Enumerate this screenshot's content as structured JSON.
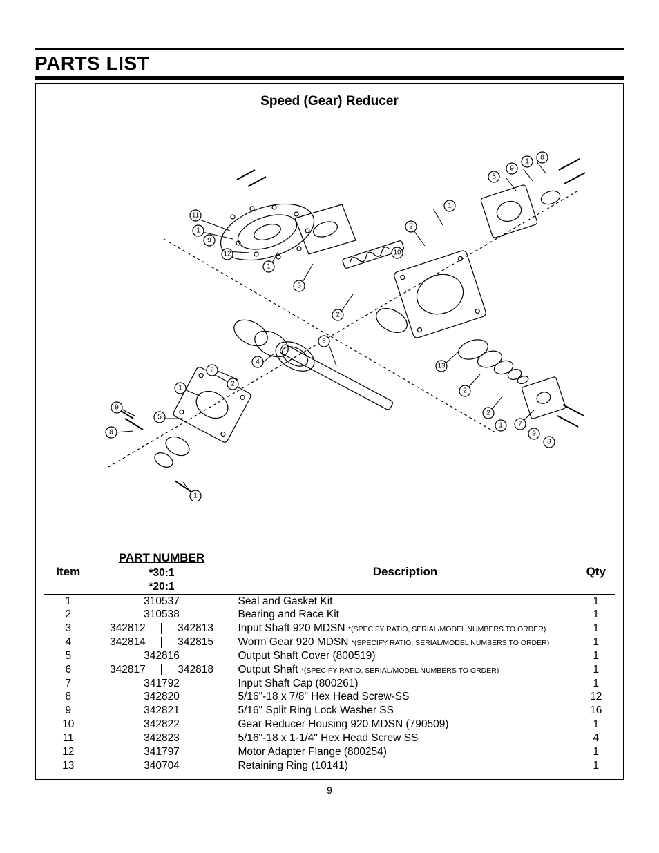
{
  "section_title": "PARTS LIST",
  "sub_title": "Speed (Gear) Reducer",
  "page_number": "9",
  "table": {
    "headers": {
      "item": "Item",
      "part_number": "PART NUMBER",
      "ratio_30": "*30:1",
      "ratio_20": "*20:1",
      "description": "Description",
      "qty": "Qty"
    },
    "rows": [
      {
        "item": "1",
        "pn": "310537",
        "split": false,
        "desc": "Seal and Gasket Kit",
        "note": "",
        "qty": "1"
      },
      {
        "item": "2",
        "pn": "310538",
        "split": false,
        "desc": "Bearing and Race Kit",
        "note": "",
        "qty": "1"
      },
      {
        "item": "3",
        "pn30": "342812",
        "pn20": "342813",
        "split": true,
        "desc": "Input Shaft 920 MDSN ",
        "note": "*(SPECIFY RATIO, SERIAL/MODEL NUMBERS TO ORDER)",
        "qty": "1"
      },
      {
        "item": "4",
        "pn30": "342814",
        "pn20": "342815",
        "split": true,
        "desc": "Worm Gear 920 MDSN ",
        "note": "*(SPECIFY RATIO, SERIAL/MODEL NUMBERS TO ORDER)",
        "qty": "1"
      },
      {
        "item": "5",
        "pn": "342816",
        "split": false,
        "desc": "Output Shaft Cover (800519)",
        "note": "",
        "qty": "1"
      },
      {
        "item": "6",
        "pn30": "342817",
        "pn20": "342818",
        "split": true,
        "desc": "Output Shaft ",
        "note": "*(SPECIFY RATIO, SERIAL/MODEL NUMBERS TO ORDER)",
        "qty": "1"
      },
      {
        "item": "7",
        "pn": "341792",
        "split": false,
        "desc": "Input Shaft Cap  (800261)",
        "note": "",
        "qty": "1"
      },
      {
        "item": "8",
        "pn": "342820",
        "split": false,
        "desc": "5/16\"-18 x 7/8\" Hex Head Screw-SS",
        "note": "",
        "qty": "12"
      },
      {
        "item": "9",
        "pn": "342821",
        "split": false,
        "desc": "5/16\" Split Ring Lock Washer SS",
        "note": "",
        "qty": "16"
      },
      {
        "item": "10",
        "pn": "342822",
        "split": false,
        "desc": "Gear Reducer Housing 920 MDSN (790509)",
        "note": "",
        "qty": "1"
      },
      {
        "item": "11",
        "pn": "342823",
        "split": false,
        "desc": "5/16\"-18 x 1-1/4\" Hex Head Screw SS",
        "note": "",
        "qty": "4"
      },
      {
        "item": "12",
        "pn": "341797",
        "split": false,
        "desc": "Motor Adapter Flange (800254)",
        "note": "",
        "qty": "1"
      },
      {
        "item": "13",
        "pn": "340704",
        "split": false,
        "desc": "Retaining Ring (10141)",
        "note": "",
        "qty": "1"
      }
    ]
  },
  "diagram_callouts": [
    "1",
    "2",
    "3",
    "4",
    "5",
    "6",
    "7",
    "8",
    "9",
    "10",
    "11",
    "12",
    "13"
  ],
  "colors": {
    "stroke": "#000000",
    "fill": "#ffffff"
  }
}
